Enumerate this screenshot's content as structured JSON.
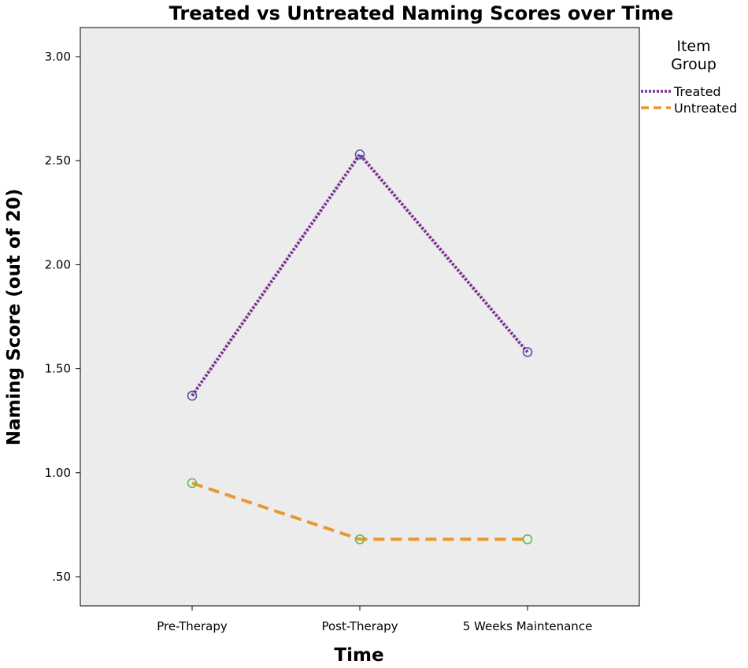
{
  "chart_data": {
    "type": "line",
    "title": "Treated vs Untreated Naming Scores over Time",
    "xlabel": "Time",
    "ylabel": "Naming Score (out of 20)",
    "categories": [
      "Pre-Therapy",
      "Post-Therapy",
      "5 Weeks Maintenance"
    ],
    "y_ticks": [
      ".50",
      "1.00",
      "1.50",
      "2.00",
      "2.50",
      "3.00"
    ],
    "ylim": [
      0.36,
      3.14
    ],
    "grid": false,
    "legend": {
      "title_line1": "Item",
      "title_line2": "Group",
      "placement": "right"
    },
    "series": [
      {
        "name": "Treated",
        "values": [
          1.37,
          2.53,
          1.58
        ],
        "line_color": "#7b3294",
        "marker_color": "#4a4aaa",
        "dash": "dotted"
      },
      {
        "name": "Untreated",
        "values": [
          0.95,
          0.68,
          0.68
        ],
        "line_color": "#e8982e",
        "marker_color": "#5cba4a",
        "dash": "dashed"
      }
    ],
    "plot_background": "#ececec"
  }
}
